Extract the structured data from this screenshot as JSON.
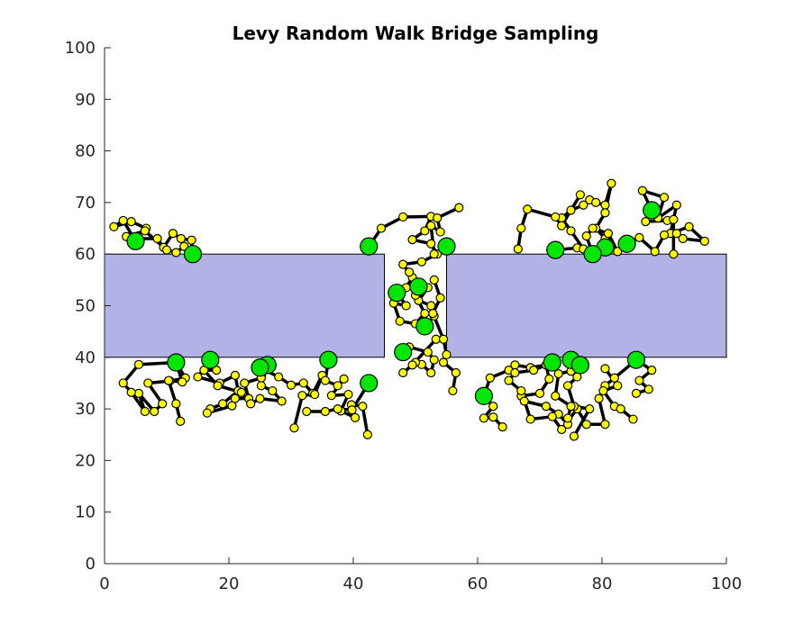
{
  "colors": {
    "background": "#ffffff",
    "axis": "#262626",
    "obstacle_fill": "#b2b2e6",
    "obstacle_stroke": "#000000",
    "path": "#000000",
    "waypoint_fill": "#ffff00",
    "endpoint_fill": "#00e600"
  },
  "chart_data": {
    "type": "scatter",
    "title": "Levy Random Walk Bridge Sampling",
    "xlabel": "",
    "ylabel": "",
    "xlim": [
      0,
      100
    ],
    "ylim": [
      0,
      100
    ],
    "xticks": [
      0,
      20,
      40,
      60,
      80,
      100
    ],
    "yticks": [
      0,
      10,
      20,
      30,
      40,
      50,
      60,
      70,
      80,
      90,
      100
    ],
    "grid": false,
    "legend": "none",
    "obstacles": [
      {
        "x": [
          0,
          45
        ],
        "y": [
          40,
          60
        ]
      },
      {
        "x": [
          55,
          100
        ],
        "y": [
          40,
          60
        ]
      }
    ],
    "walks": [
      {
        "points": [
          [
            5,
            62.5
          ],
          [
            3,
            66.5
          ],
          [
            1.5,
            65.3
          ],
          [
            4.3,
            66.3
          ],
          [
            6.7,
            65
          ],
          [
            4.5,
            63
          ],
          [
            8.5,
            63
          ],
          [
            9.5,
            61.3
          ],
          [
            11,
            64
          ],
          [
            12.3,
            63
          ],
          [
            14,
            62.7
          ],
          [
            14.2,
            60
          ]
        ],
        "start": true,
        "end": true
      },
      {
        "points": [
          [
            5,
            62.5
          ],
          [
            3.5,
            63.4
          ],
          [
            6.5,
            64.5
          ],
          [
            10,
            60.8
          ],
          [
            11.5,
            60.3
          ],
          [
            12.8,
            61.5
          ],
          [
            14.2,
            60
          ]
        ],
        "start": false,
        "end": false
      },
      {
        "points": [
          [
            11.5,
            39
          ],
          [
            13,
            36
          ],
          [
            10.5,
            35.4
          ],
          [
            7,
            35
          ],
          [
            9.3,
            31
          ],
          [
            8,
            29.5
          ],
          [
            5.5,
            33
          ],
          [
            6.5,
            29.5
          ],
          [
            4.3,
            33.2
          ],
          [
            3,
            35
          ],
          [
            5.5,
            38.6
          ],
          [
            11.5,
            39
          ]
        ],
        "start": true,
        "end": false
      },
      {
        "points": [
          [
            11.5,
            39
          ],
          [
            12.5,
            35.2
          ],
          [
            10.3,
            35.5
          ],
          [
            11.5,
            31
          ],
          [
            12.2,
            27.6
          ]
        ],
        "start": false,
        "end": false
      },
      {
        "points": [
          [
            17,
            39.5
          ],
          [
            15,
            36.2
          ],
          [
            18.5,
            35
          ],
          [
            21,
            36.5
          ],
          [
            21.5,
            33.5
          ],
          [
            19,
            31
          ],
          [
            17,
            30
          ],
          [
            16.5,
            29.2
          ],
          [
            20.5,
            30.6
          ],
          [
            21,
            32
          ],
          [
            23.2,
            32
          ],
          [
            22.5,
            35
          ],
          [
            25.2,
            36
          ],
          [
            26.2,
            38.5
          ]
        ],
        "start": true,
        "end": true
      },
      {
        "points": [
          [
            17,
            39.5
          ],
          [
            18,
            37.5
          ],
          [
            16,
            37.5
          ],
          [
            18.2,
            34.5
          ],
          [
            22,
            33.2
          ],
          [
            23.5,
            31
          ],
          [
            25,
            32
          ],
          [
            28.5,
            31.5
          ],
          [
            27,
            33.5
          ],
          [
            25.2,
            34.5
          ],
          [
            26.2,
            38.5
          ]
        ],
        "start": false,
        "end": false
      },
      {
        "points": [
          [
            25,
            38
          ],
          [
            28,
            36.2
          ],
          [
            30,
            34.6
          ],
          [
            32,
            35
          ],
          [
            33.5,
            33
          ],
          [
            35,
            36.5
          ],
          [
            33.8,
            32.8
          ],
          [
            31.8,
            32.6
          ],
          [
            30.5,
            26.3
          ]
        ],
        "start": true,
        "end": false
      },
      {
        "points": [
          [
            36,
            39.5
          ],
          [
            35.5,
            35.5
          ],
          [
            37.5,
            34.5
          ],
          [
            38.5,
            35.8
          ],
          [
            36.5,
            32.6
          ],
          [
            39.2,
            32.8
          ],
          [
            38,
            29.6
          ],
          [
            40.3,
            28.3
          ],
          [
            39.7,
            30.8
          ],
          [
            41.5,
            30.5
          ],
          [
            42.3,
            25
          ]
        ],
        "start": true,
        "end": false
      },
      {
        "points": [
          [
            32.5,
            29.5
          ],
          [
            35.5,
            29.5
          ],
          [
            37.5,
            30
          ],
          [
            39.8,
            29.8
          ],
          [
            42.5,
            35
          ]
        ],
        "start": false,
        "end": true
      },
      {
        "points": [
          [
            42.5,
            61.5
          ],
          [
            44.5,
            65
          ],
          [
            48,
            67.2
          ],
          [
            52.5,
            67.3
          ],
          [
            51.5,
            64.5
          ],
          [
            49.5,
            62.8
          ],
          [
            52.5,
            62
          ],
          [
            53.5,
            60
          ],
          [
            51,
            58.5
          ],
          [
            48,
            58
          ],
          [
            49.5,
            55.5
          ],
          [
            48.5,
            53.5
          ],
          [
            52,
            53.5
          ],
          [
            50.5,
            51
          ],
          [
            52.5,
            50
          ],
          [
            53,
            48
          ],
          [
            51.5,
            46
          ]
        ],
        "start": true,
        "end": true
      },
      {
        "points": [
          [
            47,
            52.5
          ],
          [
            48.5,
            50
          ],
          [
            46.5,
            50.5
          ],
          [
            47.5,
            47
          ],
          [
            50,
            46.5
          ],
          [
            51.5,
            48.5
          ],
          [
            50,
            52
          ],
          [
            49,
            56.5
          ],
          [
            50.5,
            53.7
          ]
        ],
        "start": true,
        "end": true
      },
      {
        "points": [
          [
            55,
            61.5
          ],
          [
            53,
            60
          ],
          [
            52.5,
            65.5
          ],
          [
            54,
            64.3
          ],
          [
            53.5,
            67
          ],
          [
            57,
            69
          ]
        ],
        "start": true,
        "end": false
      },
      {
        "points": [
          [
            48,
            41
          ],
          [
            49,
            42
          ],
          [
            52,
            41
          ],
          [
            53,
            39.5
          ],
          [
            52.5,
            37
          ],
          [
            51,
            38.6
          ],
          [
            50,
            39
          ],
          [
            48,
            37
          ],
          [
            49.5,
            38.5
          ],
          [
            53.3,
            43.5
          ]
        ],
        "start": true,
        "end": false
      },
      {
        "points": [
          [
            53,
            55
          ],
          [
            54,
            51.5
          ],
          [
            52.8,
            48.5
          ],
          [
            54.5,
            43.5
          ],
          [
            55,
            40.5
          ],
          [
            54.5,
            39
          ],
          [
            56.5,
            37
          ],
          [
            56,
            33.5
          ]
        ],
        "start": false,
        "end": false
      },
      {
        "points": [
          [
            61,
            32.5
          ],
          [
            62,
            36
          ],
          [
            65,
            37.5
          ],
          [
            66,
            38.5
          ],
          [
            68.5,
            38
          ],
          [
            71,
            38.5
          ],
          [
            71.5,
            35.8
          ],
          [
            70,
            33
          ],
          [
            67,
            32.5
          ],
          [
            67.5,
            31.5
          ],
          [
            71,
            30.5
          ],
          [
            73,
            29
          ],
          [
            74.5,
            27
          ]
        ],
        "start": true,
        "end": false
      },
      {
        "points": [
          [
            61,
            32.5
          ],
          [
            62.5,
            30.5
          ],
          [
            61,
            28.2
          ],
          [
            62.5,
            28.4
          ],
          [
            64,
            26.5
          ]
        ],
        "start": false,
        "end": false
      },
      {
        "points": [
          [
            72,
            39
          ],
          [
            69,
            37.5
          ],
          [
            66,
            37
          ],
          [
            65,
            35.5
          ],
          [
            67,
            33.5
          ],
          [
            68.5,
            28
          ],
          [
            72,
            28.5
          ],
          [
            73.5,
            26
          ],
          [
            76,
            30
          ],
          [
            77.5,
            27
          ],
          [
            80.5,
            27
          ],
          [
            79.5,
            32
          ],
          [
            80.5,
            34.5
          ],
          [
            82,
            36
          ],
          [
            85.5,
            39.5
          ]
        ],
        "start": true,
        "end": true
      },
      {
        "points": [
          [
            75,
            39.5
          ],
          [
            77,
            38.5
          ],
          [
            76,
            36.2
          ],
          [
            74.5,
            34.5
          ],
          [
            75.5,
            30.5
          ],
          [
            78,
            30
          ],
          [
            75.5,
            24.7
          ]
        ],
        "start": true,
        "end": false
      },
      {
        "points": [
          [
            76.5,
            38.5
          ],
          [
            75,
            37.3
          ],
          [
            73,
            36.8
          ],
          [
            72.5,
            32.5
          ],
          [
            75,
            30.5
          ],
          [
            74.5,
            28.2
          ]
        ],
        "start": true,
        "end": false
      },
      {
        "points": [
          [
            80.5,
            37.8
          ],
          [
            82.5,
            34.5
          ],
          [
            80.2,
            33.5
          ],
          [
            82,
            30.5
          ],
          [
            83,
            30
          ],
          [
            85,
            28
          ]
        ],
        "start": false,
        "end": false
      },
      {
        "points": [
          [
            85.5,
            39.5
          ],
          [
            88,
            37.5
          ],
          [
            86,
            35.5
          ],
          [
            87.5,
            33.8
          ],
          [
            85.5,
            33
          ]
        ],
        "start": false,
        "end": false
      },
      {
        "points": [
          [
            72.5,
            60.8
          ],
          [
            76,
            61.2
          ],
          [
            77,
            61
          ],
          [
            75,
            64.5
          ],
          [
            73.5,
            67
          ],
          [
            75,
            68.5
          ],
          [
            77,
            69.5
          ],
          [
            78,
            70.5
          ],
          [
            79,
            70
          ],
          [
            80.5,
            69.5
          ],
          [
            81.5,
            73.7
          ],
          [
            80.5,
            68
          ],
          [
            79,
            65
          ],
          [
            80.5,
            63
          ],
          [
            80.5,
            61.3
          ]
        ],
        "start": true,
        "end": true
      },
      {
        "points": [
          [
            66.5,
            61
          ],
          [
            67,
            65
          ],
          [
            68,
            68.7
          ],
          [
            72.5,
            67.2
          ],
          [
            73.5,
            65.5
          ],
          [
            76.5,
            71.5
          ]
        ],
        "start": false,
        "end": false
      },
      {
        "points": [
          [
            78.5,
            60
          ],
          [
            77.5,
            63.5
          ],
          [
            78.5,
            65
          ],
          [
            81,
            64
          ],
          [
            82.5,
            60.5
          ],
          [
            84,
            62
          ]
        ],
        "start": true,
        "end": true
      },
      {
        "points": [
          [
            88,
            68.5
          ],
          [
            86.5,
            72.3
          ],
          [
            90,
            71
          ],
          [
            89,
            67
          ],
          [
            92,
            69.5
          ],
          [
            91,
            64
          ],
          [
            94,
            65.3
          ],
          [
            96.5,
            62.5
          ],
          [
            93,
            63
          ],
          [
            92,
            64
          ],
          [
            90,
            63.7
          ],
          [
            88.5,
            60.5
          ],
          [
            86,
            63.2
          ],
          [
            84,
            62
          ]
        ],
        "start": true,
        "end": false
      },
      {
        "points": [
          [
            88,
            68.5
          ],
          [
            87,
            66.3
          ],
          [
            90.5,
            66.5
          ],
          [
            91.5,
            66.7
          ],
          [
            91.5,
            60
          ]
        ],
        "start": false,
        "end": false
      }
    ]
  }
}
